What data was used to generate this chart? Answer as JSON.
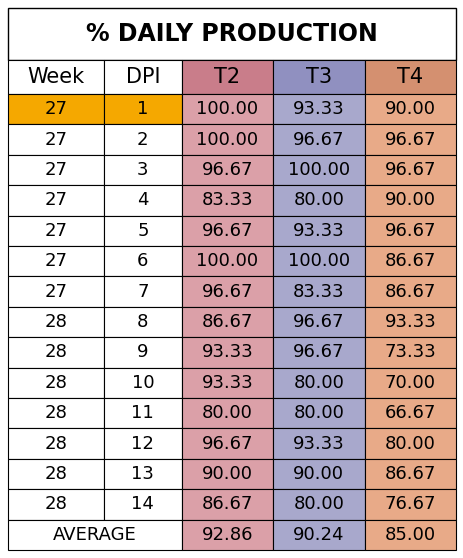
{
  "title": "% DAILY PRODUCTION",
  "columns": [
    "Week",
    "DPI",
    "T2",
    "T3",
    "T4"
  ],
  "rows": [
    [
      "27",
      "1",
      "100.00",
      "93.33",
      "90.00"
    ],
    [
      "27",
      "2",
      "100.00",
      "96.67",
      "96.67"
    ],
    [
      "27",
      "3",
      "96.67",
      "100.00",
      "96.67"
    ],
    [
      "27",
      "4",
      "83.33",
      "80.00",
      "90.00"
    ],
    [
      "27",
      "5",
      "96.67",
      "93.33",
      "96.67"
    ],
    [
      "27",
      "6",
      "100.00",
      "100.00",
      "86.67"
    ],
    [
      "27",
      "7",
      "96.67",
      "83.33",
      "86.67"
    ],
    [
      "28",
      "8",
      "86.67",
      "96.67",
      "93.33"
    ],
    [
      "28",
      "9",
      "93.33",
      "96.67",
      "73.33"
    ],
    [
      "28",
      "10",
      "93.33",
      "80.00",
      "70.00"
    ],
    [
      "28",
      "11",
      "80.00",
      "80.00",
      "66.67"
    ],
    [
      "28",
      "12",
      "96.67",
      "93.33",
      "80.00"
    ],
    [
      "28",
      "13",
      "90.00",
      "90.00",
      "86.67"
    ],
    [
      "28",
      "14",
      "86.67",
      "80.00",
      "76.67"
    ],
    [
      "AVERAGE",
      "",
      "92.86",
      "90.24",
      "85.00"
    ]
  ],
  "col_header_colors": [
    "#ffffff",
    "#ffffff",
    "#c97d8a",
    "#9090c0",
    "#d49070"
  ],
  "t2_color": "#dba0a8",
  "t3_color": "#a8a8cc",
  "t4_color": "#e8aa88",
  "row1_color": "#f5a800",
  "white_bg": "#ffffff",
  "grid_color": "#000000",
  "title_fontsize": 17,
  "header_fontsize": 15,
  "cell_fontsize": 13
}
